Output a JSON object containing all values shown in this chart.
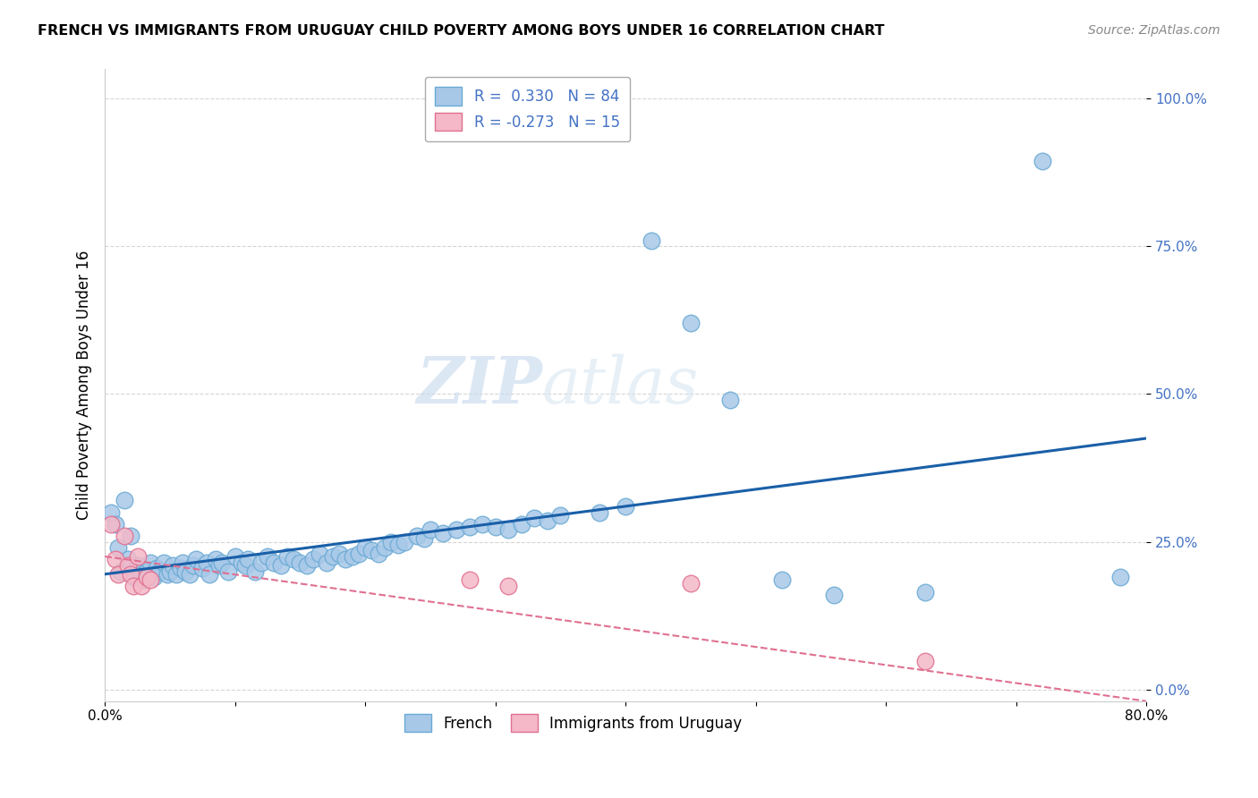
{
  "title": "FRENCH VS IMMIGRANTS FROM URUGUAY CHILD POVERTY AMONG BOYS UNDER 16 CORRELATION CHART",
  "source": "Source: ZipAtlas.com",
  "ylabel": "Child Poverty Among Boys Under 16",
  "xlim": [
    0.0,
    0.8
  ],
  "ylim": [
    -0.02,
    1.05
  ],
  "yticks": [
    0.0,
    0.25,
    0.5,
    0.75,
    1.0
  ],
  "ytick_labels": [
    "0.0%",
    "25.0%",
    "50.0%",
    "75.0%",
    "100.0%"
  ],
  "french_color": "#a8c8e8",
  "french_edge_color": "#6aaad4",
  "uruguay_color": "#f4b8c8",
  "uruguay_edge_color": "#e07090",
  "trendline_french_color": "#1a5fa8",
  "trendline_uruguay_color": "#e07090",
  "watermark_zip": "ZIP",
  "watermark_atlas": "atlas",
  "french_x": [
    0.005,
    0.008,
    0.01,
    0.012,
    0.015,
    0.018,
    0.02,
    0.022,
    0.025,
    0.028,
    0.03,
    0.032,
    0.035,
    0.038,
    0.04,
    0.042,
    0.045,
    0.048,
    0.05,
    0.052,
    0.055,
    0.058,
    0.06,
    0.062,
    0.065,
    0.068,
    0.07,
    0.075,
    0.078,
    0.08,
    0.085,
    0.088,
    0.09,
    0.095,
    0.1,
    0.105,
    0.108,
    0.11,
    0.115,
    0.12,
    0.125,
    0.13,
    0.135,
    0.14,
    0.145,
    0.15,
    0.155,
    0.16,
    0.165,
    0.17,
    0.175,
    0.18,
    0.185,
    0.19,
    0.195,
    0.2,
    0.205,
    0.21,
    0.215,
    0.22,
    0.225,
    0.23,
    0.24,
    0.245,
    0.25,
    0.26,
    0.27,
    0.28,
    0.29,
    0.3,
    0.31,
    0.32,
    0.33,
    0.34,
    0.35,
    0.38,
    0.4,
    0.42,
    0.45,
    0.48,
    0.52,
    0.56,
    0.63,
    0.72,
    0.78
  ],
  "french_y": [
    0.3,
    0.28,
    0.24,
    0.2,
    0.32,
    0.22,
    0.26,
    0.19,
    0.21,
    0.195,
    0.185,
    0.2,
    0.215,
    0.19,
    0.205,
    0.2,
    0.215,
    0.195,
    0.2,
    0.21,
    0.195,
    0.205,
    0.215,
    0.2,
    0.195,
    0.21,
    0.22,
    0.205,
    0.215,
    0.195,
    0.22,
    0.21,
    0.215,
    0.2,
    0.225,
    0.215,
    0.21,
    0.22,
    0.2,
    0.215,
    0.225,
    0.215,
    0.21,
    0.225,
    0.22,
    0.215,
    0.21,
    0.22,
    0.23,
    0.215,
    0.225,
    0.23,
    0.22,
    0.225,
    0.23,
    0.24,
    0.235,
    0.23,
    0.24,
    0.25,
    0.245,
    0.25,
    0.26,
    0.255,
    0.27,
    0.265,
    0.27,
    0.275,
    0.28,
    0.275,
    0.27,
    0.28,
    0.29,
    0.285,
    0.295,
    0.3,
    0.31,
    0.76,
    0.62,
    0.49,
    0.185,
    0.16,
    0.165,
    0.895,
    0.19
  ],
  "uruguay_x": [
    0.005,
    0.008,
    0.01,
    0.015,
    0.018,
    0.02,
    0.022,
    0.025,
    0.028,
    0.032,
    0.035,
    0.28,
    0.31,
    0.45,
    0.63
  ],
  "uruguay_y": [
    0.28,
    0.22,
    0.195,
    0.26,
    0.21,
    0.195,
    0.175,
    0.225,
    0.175,
    0.19,
    0.185,
    0.185,
    0.175,
    0.18,
    0.048
  ],
  "trendline_french_x0": 0.0,
  "trendline_french_y0": 0.195,
  "trendline_french_x1": 0.8,
  "trendline_french_y1": 0.425,
  "trendline_uruguay_x0": 0.0,
  "trendline_uruguay_y0": 0.225,
  "trendline_uruguay_x1": 0.8,
  "trendline_uruguay_y1": -0.02
}
